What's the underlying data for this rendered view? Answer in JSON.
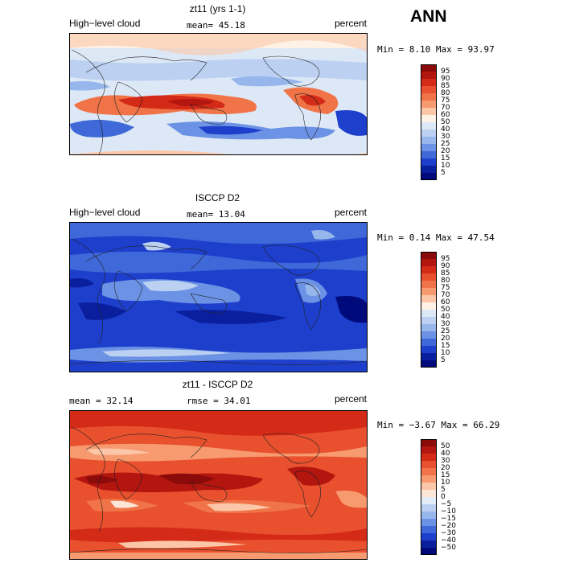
{
  "season": "ANN",
  "panels": [
    {
      "title": "zt11 (yrs 1-1)",
      "left_label": "High−level cloud",
      "center_label": "mean=  45.18",
      "right_label": "percent",
      "minmax": "Min =    8.10 Max =  93.97",
      "scheme": "seq",
      "colorbar_labels": [
        "95",
        "90",
        "85",
        "80",
        "75",
        "70",
        "60",
        "50",
        "40",
        "30",
        "25",
        "20",
        "15",
        "10",
        "5"
      ]
    },
    {
      "title": "ISCCP D2",
      "left_label": "High−level cloud",
      "center_label": "mean=  13.04",
      "right_label": "percent",
      "minmax": "Min =   0.14 Max =  47.54",
      "scheme": "seq",
      "colorbar_labels": [
        "95",
        "90",
        "85",
        "80",
        "75",
        "70",
        "60",
        "50",
        "40",
        "30",
        "25",
        "20",
        "15",
        "10",
        "5"
      ]
    },
    {
      "title": "zt11 - ISCCP D2",
      "left_label": "mean =   32.14",
      "center_label": "rmse =   34.01",
      "right_label": "percent",
      "minmax": "Min =  −3.67 Max =  66.29",
      "scheme": "div",
      "colorbar_labels": [
        "50",
        "40",
        "30",
        "20",
        "15",
        "10",
        "5",
        "0",
        "−5",
        "−10",
        "−15",
        "−20",
        "−30",
        "−40",
        "−50"
      ]
    }
  ],
  "colors": {
    "seq": [
      "#8b0a0a",
      "#b3150f",
      "#d42a18",
      "#e8502e",
      "#f07448",
      "#f79a70",
      "#fbc7a8",
      "#fef2e6",
      "#dde8f7",
      "#bcd1f2",
      "#96b6ec",
      "#6b92e4",
      "#3f68d8",
      "#1d3fcc",
      "#0a1f9e",
      "#000a7a"
    ],
    "div": [
      "#8b0a0a",
      "#b3150f",
      "#d42a18",
      "#e8502e",
      "#f07448",
      "#f79a70",
      "#fbc7a8",
      "#fde5d8",
      "#e2ecf8",
      "#bcd1f2",
      "#96b6ec",
      "#6b92e4",
      "#3f68d8",
      "#1d3fcc",
      "#0a1f9e",
      "#000a7a"
    ]
  }
}
